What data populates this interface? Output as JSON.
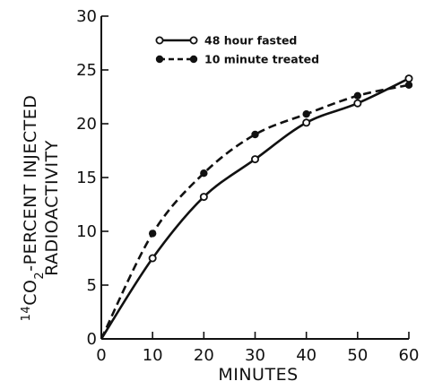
{
  "chart_data": {
    "type": "line",
    "title": "",
    "xlabel": "MINUTES",
    "ylabel": {
      "superscript": "14",
      "main": "CO",
      "subscript": "2",
      "rest": "-PERCENT INJECTED",
      "line2": "RADIOACTIVITY"
    },
    "xlim": [
      0,
      60
    ],
    "ylim": [
      0,
      30
    ],
    "xticks": [
      0,
      10,
      20,
      30,
      40,
      50,
      60
    ],
    "yticks": [
      0,
      5,
      10,
      15,
      20,
      25,
      30
    ],
    "grid": false,
    "legend_position": "top-center",
    "series": [
      {
        "name": "48 hour fasted",
        "line_style": "solid",
        "marker": "open-circle",
        "color": "#111111",
        "x": [
          0,
          10,
          20,
          30,
          40,
          50,
          60
        ],
        "y": [
          0,
          7.5,
          13.2,
          16.7,
          20.1,
          21.9,
          24.2
        ]
      },
      {
        "name": "10 minute treated",
        "line_style": "dashed",
        "marker": "filled-circle",
        "color": "#111111",
        "x": [
          0,
          10,
          20,
          30,
          40,
          50,
          60
        ],
        "y": [
          0,
          9.8,
          15.4,
          19.0,
          20.9,
          22.6,
          23.6
        ]
      }
    ]
  }
}
